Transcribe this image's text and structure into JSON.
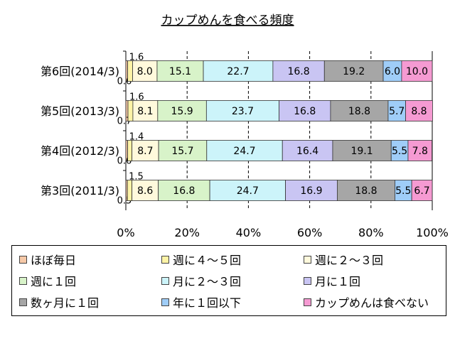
{
  "chart_data": {
    "type": "bar",
    "orientation": "horizontal",
    "stacked": true,
    "percent": true,
    "title": "カップめんを食べる頻度",
    "categories": [
      "第6回(2014/3)",
      "第5回(2013/3)",
      "第4回(2012/3)",
      "第3回(2011/3)"
    ],
    "xlim": [
      0,
      100
    ],
    "xticks": [
      "0%",
      "20%",
      "40%",
      "60%",
      "80%",
      "100%"
    ],
    "grid": "vertical dashed",
    "legend_position": "bottom",
    "series": [
      {
        "name": "ほぼ毎日",
        "color": "#f6c9a8",
        "values": [
          0.6,
          0.7,
          0.6,
          0.5
        ],
        "labels": [
          "0.6",
          "0.7",
          "0.6",
          "0.5"
        ]
      },
      {
        "name": "週に４～５回",
        "color": "#fdf3a6",
        "values": [
          1.6,
          1.6,
          1.4,
          1.5
        ],
        "labels": [
          "1.6",
          "1.6",
          "1.4",
          "1.5"
        ]
      },
      {
        "name": "週に２～３回",
        "color": "#fff9dc",
        "values": [
          8.0,
          8.1,
          8.7,
          8.6
        ],
        "labels": [
          "8.0",
          "8.1",
          "8.7",
          "8.6"
        ]
      },
      {
        "name": "週に１回",
        "color": "#d8f3c9",
        "values": [
          15.1,
          15.9,
          15.7,
          16.8
        ],
        "labels": [
          "15.1",
          "15.9",
          "15.7",
          "16.8"
        ]
      },
      {
        "name": "月に２～３回",
        "color": "#ccf4fa",
        "values": [
          22.7,
          23.7,
          24.7,
          24.7
        ],
        "labels": [
          "22.7",
          "23.7",
          "24.7",
          "24.7"
        ]
      },
      {
        "name": "月に１回",
        "color": "#c9c5f3",
        "values": [
          16.8,
          16.8,
          16.4,
          16.9
        ],
        "labels": [
          "16.8",
          "16.8",
          "16.4",
          "16.9"
        ]
      },
      {
        "name": "数ヶ月に１回",
        "color": "#a6a6a6",
        "values": [
          19.2,
          18.8,
          19.1,
          18.8
        ],
        "labels": [
          "19.2",
          "18.8",
          "19.1",
          "18.8"
        ]
      },
      {
        "name": "年に１回以下",
        "color": "#9fcdf8",
        "values": [
          6.0,
          5.7,
          5.5,
          5.5
        ],
        "labels": [
          "6.0",
          "5.7",
          "5.5",
          "5.5"
        ]
      },
      {
        "name": "カップめんは食べない",
        "color": "#f59ad2",
        "values": [
          10.0,
          8.8,
          7.8,
          6.7
        ],
        "labels": [
          "10.0",
          "8.8",
          "7.8",
          "6.7"
        ]
      }
    ]
  }
}
